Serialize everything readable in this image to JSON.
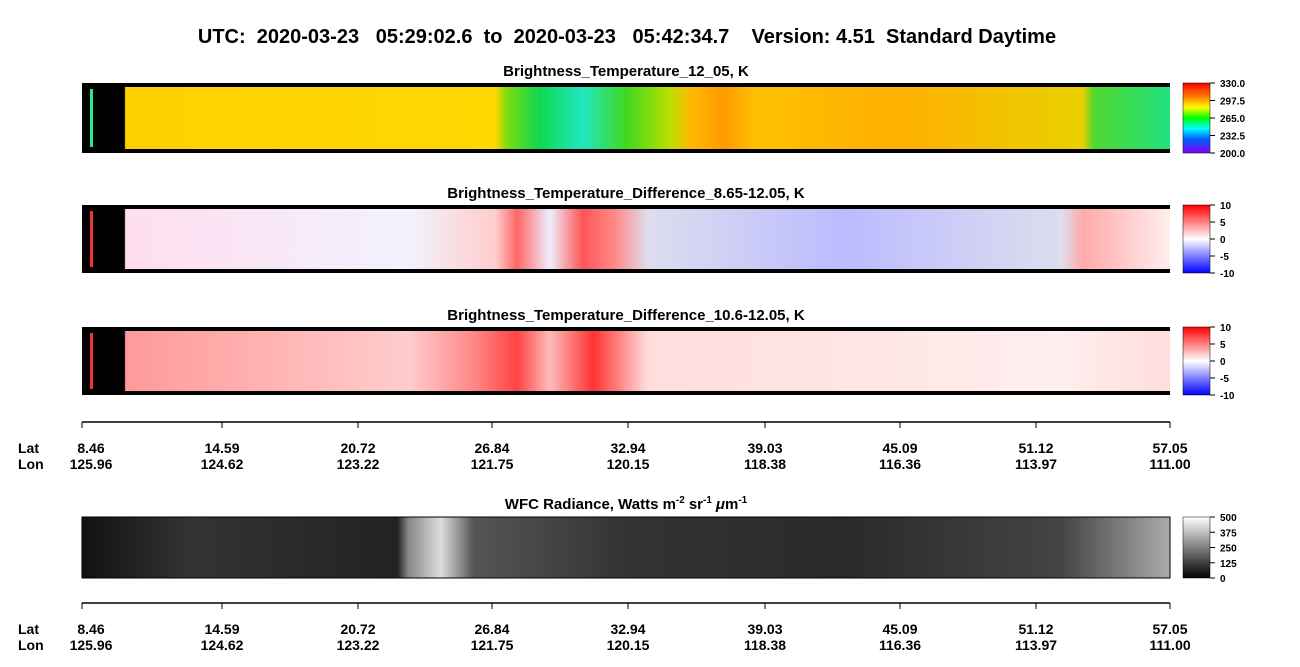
{
  "header": {
    "title": "UTC:  2020-03-23   05:29:02.6  to  2020-03-23   05:42:34.7    Version: 4.51  Standard Daytime"
  },
  "panels": [
    {
      "title": "Brightness_Temperature_12_05, K",
      "colorbar": [
        "330.0",
        "297.5",
        "265.0",
        "232.5",
        "200.0"
      ]
    },
    {
      "title": "Brightness_Temperature_Difference_8.65-12.05, K",
      "colorbar": [
        "10",
        "5",
        "0",
        "-5",
        "-10"
      ]
    },
    {
      "title": "Brightness_Temperature_Difference_10.6-12.05, K",
      "colorbar": [
        "10",
        "5",
        "0",
        "-5",
        "-10"
      ]
    },
    {
      "title_parts": [
        "WFC Radiance, Watts m",
        "-2",
        "sr",
        "-1",
        "μ",
        "m",
        "-1"
      ],
      "colorbar": [
        "500",
        "375",
        "250",
        "125",
        "0"
      ]
    }
  ],
  "axes": [
    {
      "lat_label": "Lat",
      "lon_label": "Lon",
      "lat": [
        "8.46",
        "14.59",
        "20.72",
        "26.84",
        "32.94",
        "39.03",
        "45.09",
        "51.12",
        "57.05"
      ],
      "lon": [
        "125.96",
        "124.62",
        "123.22",
        "121.75",
        "120.15",
        "118.38",
        "116.36",
        "113.97",
        "111.00"
      ]
    },
    {
      "lat_label": "Lat",
      "lon_label": "Lon",
      "lat": [
        "8.46",
        "14.59",
        "20.72",
        "26.84",
        "32.94",
        "39.03",
        "45.09",
        "51.12",
        "57.05"
      ],
      "lon": [
        "125.96",
        "124.62",
        "123.22",
        "121.75",
        "120.15",
        "118.38",
        "116.36",
        "113.97",
        "111.00"
      ]
    }
  ]
}
